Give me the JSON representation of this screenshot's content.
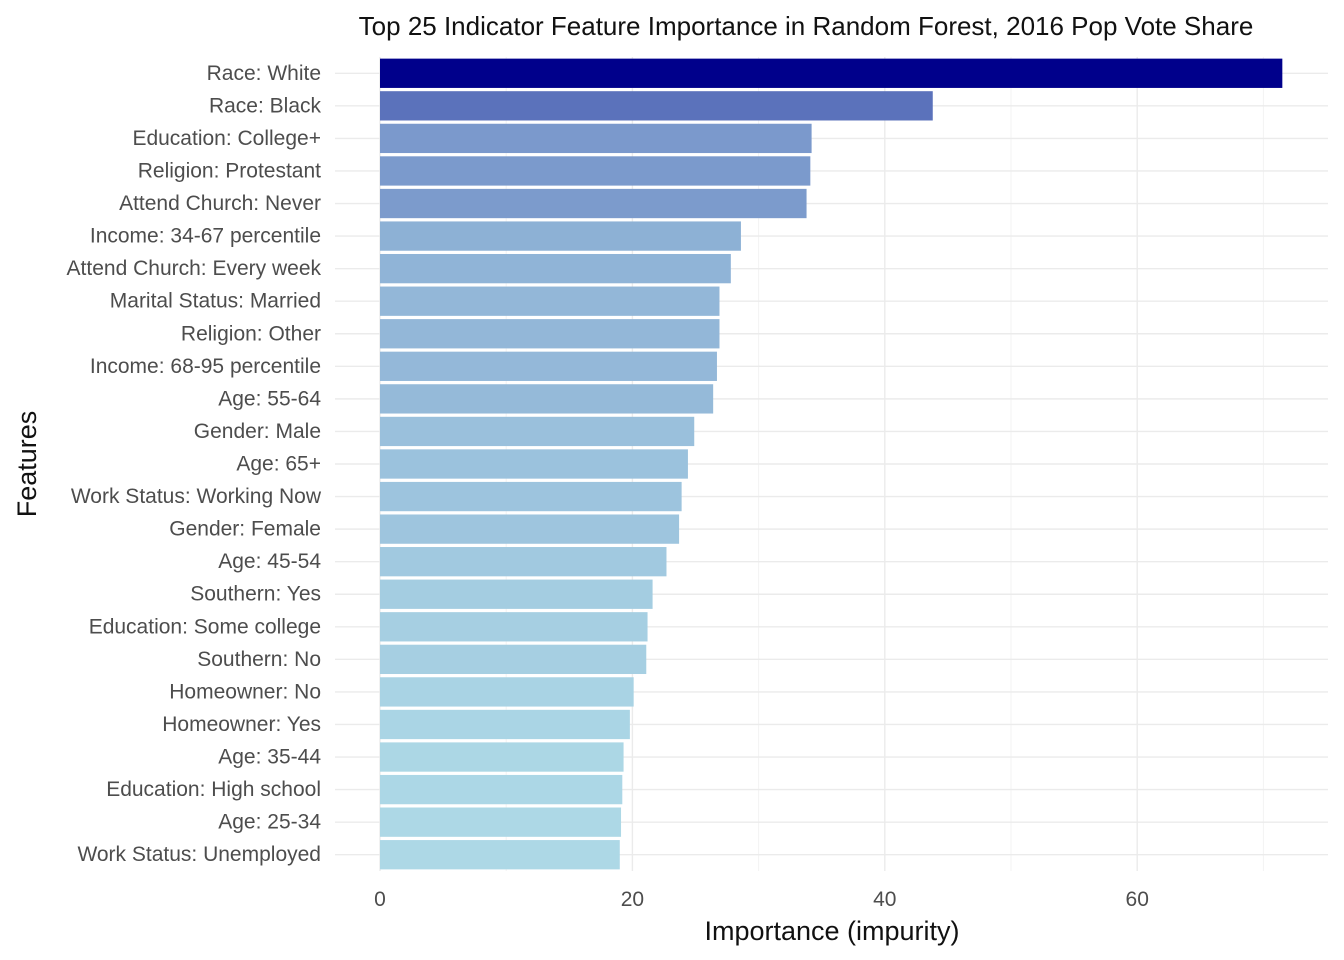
{
  "chart_data": {
    "type": "bar",
    "orientation": "horizontal",
    "title": "Top 25 Indicator Feature Importance in Random Forest, 2016 Pop Vote Share",
    "xlabel": "Importance (impurity)",
    "ylabel": "Features",
    "xlim": [
      0,
      75
    ],
    "x_ticks": [
      0,
      20,
      40,
      60
    ],
    "grid": true,
    "legend": "none",
    "color_scale": {
      "low": "#add8e6",
      "high": "#00008b"
    },
    "categories": [
      "Race: White",
      "Race: Black",
      "Education: College+",
      "Religion: Protestant",
      "Attend Church: Never",
      "Income: 34-67 percentile",
      "Attend Church: Every week",
      "Marital Status: Married",
      "Religion: Other",
      "Income: 68-95 percentile",
      "Age: 55-64",
      "Gender: Male",
      "Age: 65+",
      "Work Status: Working Now",
      "Gender: Female",
      "Age: 45-54",
      "Southern: Yes",
      "Education: Some college",
      "Southern: No",
      "Homeowner: No",
      "Homeowner: Yes",
      "Age: 35-44",
      "Education: High school",
      "Age: 25-34",
      "Work Status: Unemployed"
    ],
    "values": [
      71.5,
      43.8,
      34.2,
      34.1,
      33.8,
      28.6,
      27.8,
      26.9,
      26.9,
      26.7,
      26.4,
      24.9,
      24.4,
      23.9,
      23.7,
      22.7,
      21.6,
      21.2,
      21.1,
      20.1,
      19.8,
      19.3,
      19.2,
      19.1,
      19.0
    ]
  }
}
